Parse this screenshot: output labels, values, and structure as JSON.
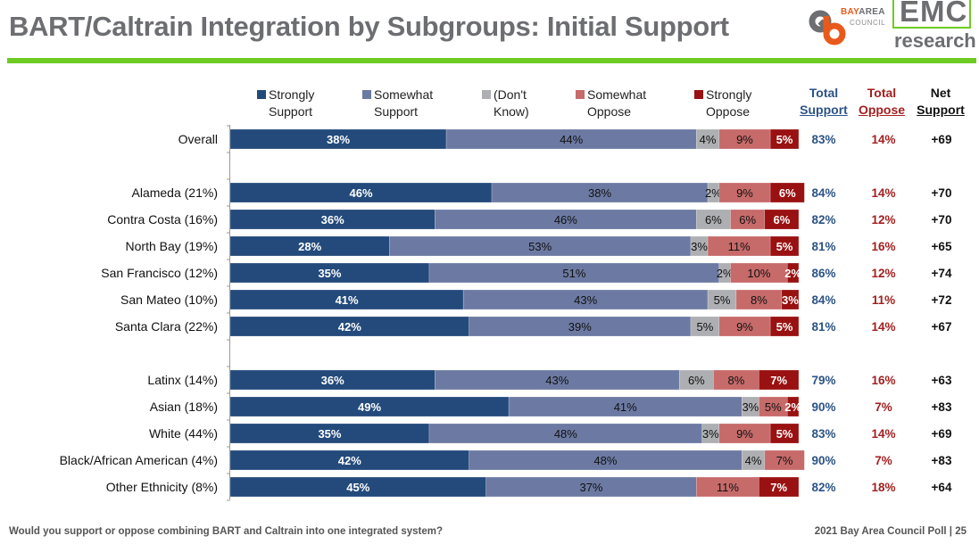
{
  "header": {
    "title": "BART/Caltrain Integration by Subgroups: Initial Support",
    "logo_bac_line1_a": "BAY",
    "logo_bac_line1_b": "AREA",
    "logo_bac_line2": "COUNCIL",
    "logo_emc": "EMC",
    "logo_emc_sub": "research"
  },
  "colors": {
    "strongly_support": "#234a7b",
    "somewhat_support": "#6c7aa3",
    "dont_know": "#adafb2",
    "somewhat_oppose": "#c76a6a",
    "strongly_oppose": "#9a1111",
    "total_support_text": "#2b5387",
    "total_oppose_text": "#a31f1f",
    "accent_rule": "#6ecb24",
    "title_text": "#6d6e71"
  },
  "legend": [
    {
      "key": "strongly_support",
      "line1": "Strongly",
      "line2": "Support"
    },
    {
      "key": "somewhat_support",
      "line1": "Somewhat",
      "line2": "Support"
    },
    {
      "key": "dont_know",
      "line1": "(Don't",
      "line2": "Know)"
    },
    {
      "key": "somewhat_oppose",
      "line1": "Somewhat",
      "line2": "Oppose"
    },
    {
      "key": "strongly_oppose",
      "line1": "Strongly",
      "line2": "Oppose"
    }
  ],
  "columns": {
    "total_support": {
      "line1": "Total",
      "line2": "Support"
    },
    "total_oppose": {
      "line1": "Total",
      "line2": "Oppose"
    },
    "net_support": {
      "line1": "Net",
      "line2": "Support"
    }
  },
  "chart_data": {
    "type": "bar",
    "orientation": "horizontal",
    "stacked": true,
    "title": "BART/Caltrain Integration by Subgroups: Initial Support",
    "xlabel": "",
    "ylabel": "",
    "xlim": [
      0,
      100
    ],
    "unit": "%",
    "legend_position": "top",
    "categories": [
      "Overall",
      "",
      "Alameda (21%)",
      "Contra Costa (16%)",
      "North Bay (19%)",
      "San Francisco (12%)",
      "San Mateo (10%)",
      "Santa Clara (22%)",
      "",
      "Latinx (14%)",
      "Asian (18%)",
      "White (44%)",
      "Black/African American (4%)",
      "Other Ethnicity (8%)"
    ],
    "series": [
      {
        "name": "Strongly Support",
        "key": "strongly_support",
        "values": [
          38,
          null,
          46,
          36,
          28,
          35,
          41,
          42,
          null,
          36,
          49,
          35,
          42,
          45
        ]
      },
      {
        "name": "Somewhat Support",
        "key": "somewhat_support",
        "values": [
          44,
          null,
          38,
          46,
          53,
          51,
          43,
          39,
          null,
          43,
          41,
          48,
          48,
          37
        ]
      },
      {
        "name": "(Don't Know)",
        "key": "dont_know",
        "values": [
          4,
          null,
          2,
          6,
          3,
          2,
          5,
          5,
          null,
          6,
          3,
          3,
          4,
          0
        ]
      },
      {
        "name": "Somewhat Oppose",
        "key": "somewhat_oppose",
        "values": [
          9,
          null,
          9,
          6,
          11,
          10,
          8,
          9,
          null,
          8,
          5,
          9,
          7,
          11
        ]
      },
      {
        "name": "Strongly Oppose",
        "key": "strongly_oppose",
        "values": [
          5,
          null,
          6,
          6,
          5,
          2,
          3,
          5,
          null,
          7,
          2,
          5,
          0,
          7
        ]
      }
    ],
    "segment_labels": [
      [
        "38%",
        "44%",
        "4%",
        "9%",
        "5%"
      ],
      null,
      [
        "46%",
        "38%",
        "2%",
        "9%",
        "6%"
      ],
      [
        "36%",
        "46%",
        "6%",
        "6%",
        "6%"
      ],
      [
        "28%",
        "53%",
        "3%",
        "11%",
        "5%"
      ],
      [
        "35%",
        "51%",
        "2%",
        "10%",
        "2%"
      ],
      [
        "41%",
        "43%",
        "5%",
        "8%",
        "3%"
      ],
      [
        "42%",
        "39%",
        "5%",
        "9%",
        "5%"
      ],
      null,
      [
        "36%",
        "43%",
        "6%",
        "8%",
        "7%"
      ],
      [
        "49%",
        "41%",
        "3%",
        "5%",
        "2%"
      ],
      [
        "35%",
        "48%",
        "3%",
        "9%",
        "5%"
      ],
      [
        "42%",
        "48%",
        "4%",
        "7%",
        ""
      ],
      [
        "45%",
        "37%",
        "",
        "11%",
        "7%"
      ]
    ],
    "total_support": [
      "83%",
      null,
      "84%",
      "82%",
      "81%",
      "86%",
      "84%",
      "81%",
      null,
      "79%",
      "90%",
      "83%",
      "90%",
      "82%"
    ],
    "total_oppose": [
      "14%",
      null,
      "14%",
      "12%",
      "16%",
      "12%",
      "11%",
      "14%",
      null,
      "16%",
      "7%",
      "14%",
      "7%",
      "18%"
    ],
    "net_support": [
      "+69",
      null,
      "+70",
      "+70",
      "+65",
      "+74",
      "+72",
      "+67",
      null,
      "+63",
      "+83",
      "+69",
      "+83",
      "+64"
    ]
  },
  "footer": {
    "question": "Would you support or oppose combining BART and Caltrain into one integrated system?",
    "source": "2021 Bay Area Council Poll | 25"
  }
}
